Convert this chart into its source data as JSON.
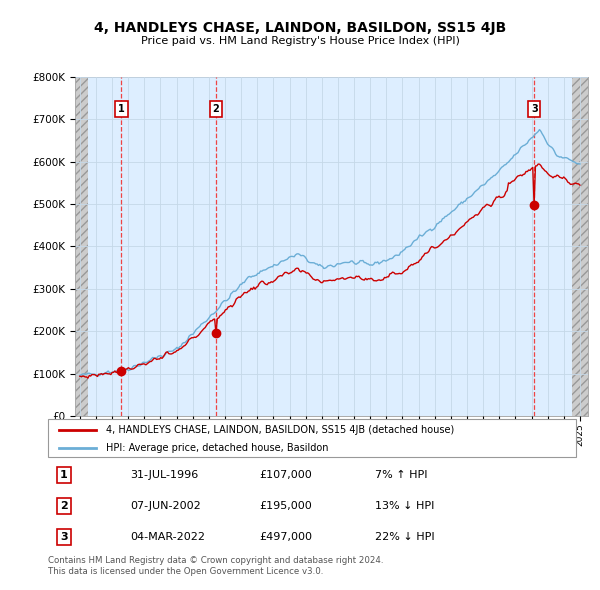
{
  "title": "4, HANDLEYS CHASE, LAINDON, BASILDON, SS15 4JB",
  "subtitle": "Price paid vs. HM Land Registry's House Price Index (HPI)",
  "ylim": [
    0,
    800000
  ],
  "yticks": [
    0,
    100000,
    200000,
    300000,
    400000,
    500000,
    600000,
    700000,
    800000
  ],
  "ytick_labels": [
    "£0",
    "£100K",
    "£200K",
    "£300K",
    "£400K",
    "£500K",
    "£600K",
    "£700K",
    "£800K"
  ],
  "xlim_start": 1993.7,
  "xlim_end": 2025.5,
  "hatch_left_end": 1994.5,
  "hatch_right_start": 2024.5,
  "sale_dates": [
    1996.58,
    2002.44,
    2022.17
  ],
  "sale_prices": [
    107000,
    195000,
    497000
  ],
  "sale_labels": [
    "1",
    "2",
    "3"
  ],
  "hpi_color": "#6baed6",
  "sale_color": "#cc0000",
  "dashed_color": "#ee4444",
  "grid_color": "#c5d8e8",
  "bg_color": "#ddeeff",
  "legend_sale_label": "4, HANDLEYS CHASE, LAINDON, BASILDON, SS15 4JB (detached house)",
  "legend_hpi_label": "HPI: Average price, detached house, Basildon",
  "table_rows": [
    [
      "1",
      "31-JUL-1996",
      "£107,000",
      "7% ↑ HPI"
    ],
    [
      "2",
      "07-JUN-2002",
      "£195,000",
      "13% ↓ HPI"
    ],
    [
      "3",
      "04-MAR-2022",
      "£497,000",
      "22% ↓ HPI"
    ]
  ],
  "footnote1": "Contains HM Land Registry data © Crown copyright and database right 2024.",
  "footnote2": "This data is licensed under the Open Government Licence v3.0."
}
